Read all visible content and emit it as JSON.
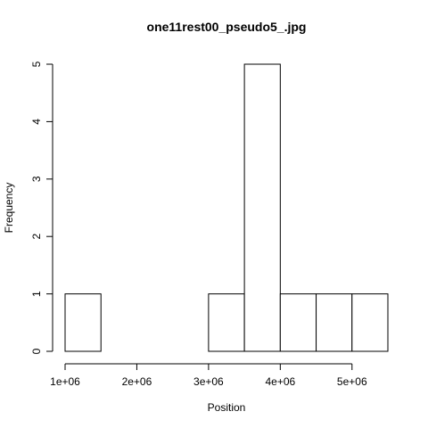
{
  "chart_data": {
    "type": "bar",
    "title": "one11rest00_pseudo5_.jpg",
    "xlabel": "Position",
    "ylabel": "Frequency",
    "bin_edges": [
      1000000,
      1500000,
      2000000,
      2500000,
      3000000,
      3500000,
      4000000,
      4500000,
      5000000,
      5500000
    ],
    "values": [
      1,
      0,
      0,
      0,
      1,
      5,
      1,
      1,
      1
    ],
    "xlim": [
      1000000,
      5500000
    ],
    "ylim": [
      0,
      5
    ],
    "x_ticks": [
      1000000,
      2000000,
      3000000,
      4000000,
      5000000
    ],
    "x_tick_labels": [
      "1e+06",
      "2e+06",
      "3e+06",
      "4e+06",
      "5e+06"
    ],
    "y_ticks": [
      0,
      1,
      2,
      3,
      4,
      5
    ],
    "y_tick_labels": [
      "0",
      "1",
      "2",
      "3",
      "4",
      "5"
    ],
    "grid": false,
    "legend": "none"
  }
}
